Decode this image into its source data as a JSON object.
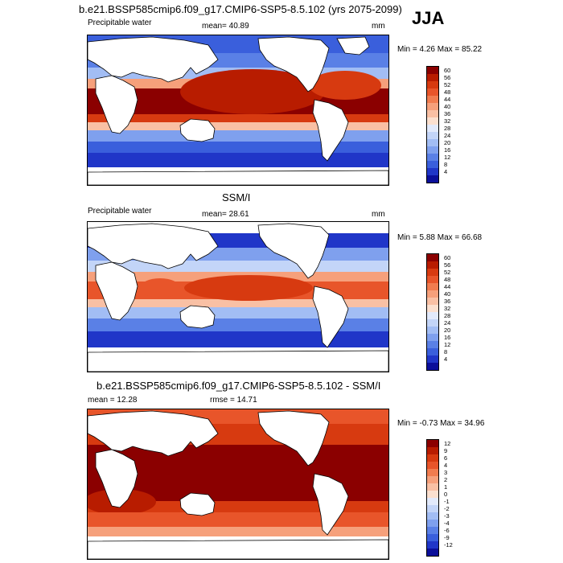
{
  "header": {
    "main_title": "b.e21.BSSP585cmip6.f09_g17.CMIP6-SSP5-8.5.102 (yrs 2075-2099)",
    "season": "JJA"
  },
  "panels": [
    {
      "left_label": "Precipitable water",
      "center_label": "mean=  40.89",
      "right_label": "mm",
      "minmax": "Min =   4.26 Max =  85.22",
      "scale": "abs"
    },
    {
      "title": "SSM/I",
      "left_label": "Precipitable water",
      "center_label": "mean=  28.61",
      "right_label": "mm",
      "minmax": "Min =   5.88 Max =  66.68",
      "scale": "abs"
    },
    {
      "title": "b.e21.BSSP585cmip6.f09_g17.CMIP6-SSP5-8.5.102 - SSM/I",
      "left_label": "mean =  12.28",
      "center_label": "rmse =  14.71",
      "minmax": "Min =  -0.73 Max =  34.96",
      "scale": "diff"
    }
  ],
  "colorbars": {
    "abs": {
      "labels": [
        "60",
        "56",
        "52",
        "48",
        "44",
        "40",
        "36",
        "32",
        "28",
        "24",
        "20",
        "16",
        "12",
        "8",
        "4"
      ],
      "colors": [
        "#8b0000",
        "#b81c00",
        "#d73a10",
        "#e8552a",
        "#f17c4f",
        "#f6a07b",
        "#f9c0a4",
        "#fbe0cf",
        "#e2eafb",
        "#c3d5f8",
        "#a2bdf4",
        "#7fa0ee",
        "#5a80e6",
        "#3a5fdc",
        "#2036c8",
        "#0b0f9a"
      ]
    },
    "diff": {
      "labels": [
        "12",
        "9",
        "6",
        "4",
        "3",
        "2",
        "1",
        "0",
        "-1",
        "-2",
        "-3",
        "-4",
        "-6",
        "-9",
        "-12"
      ],
      "colors": [
        "#8b0000",
        "#b81c00",
        "#d73a10",
        "#e8552a",
        "#f17c4f",
        "#f6a07b",
        "#f9c0a4",
        "#fbe0cf",
        "#e2eafb",
        "#c3d5f8",
        "#a2bdf4",
        "#7fa0ee",
        "#5a80e6",
        "#3a5fdc",
        "#2036c8",
        "#0b0f9a"
      ]
    }
  }
}
